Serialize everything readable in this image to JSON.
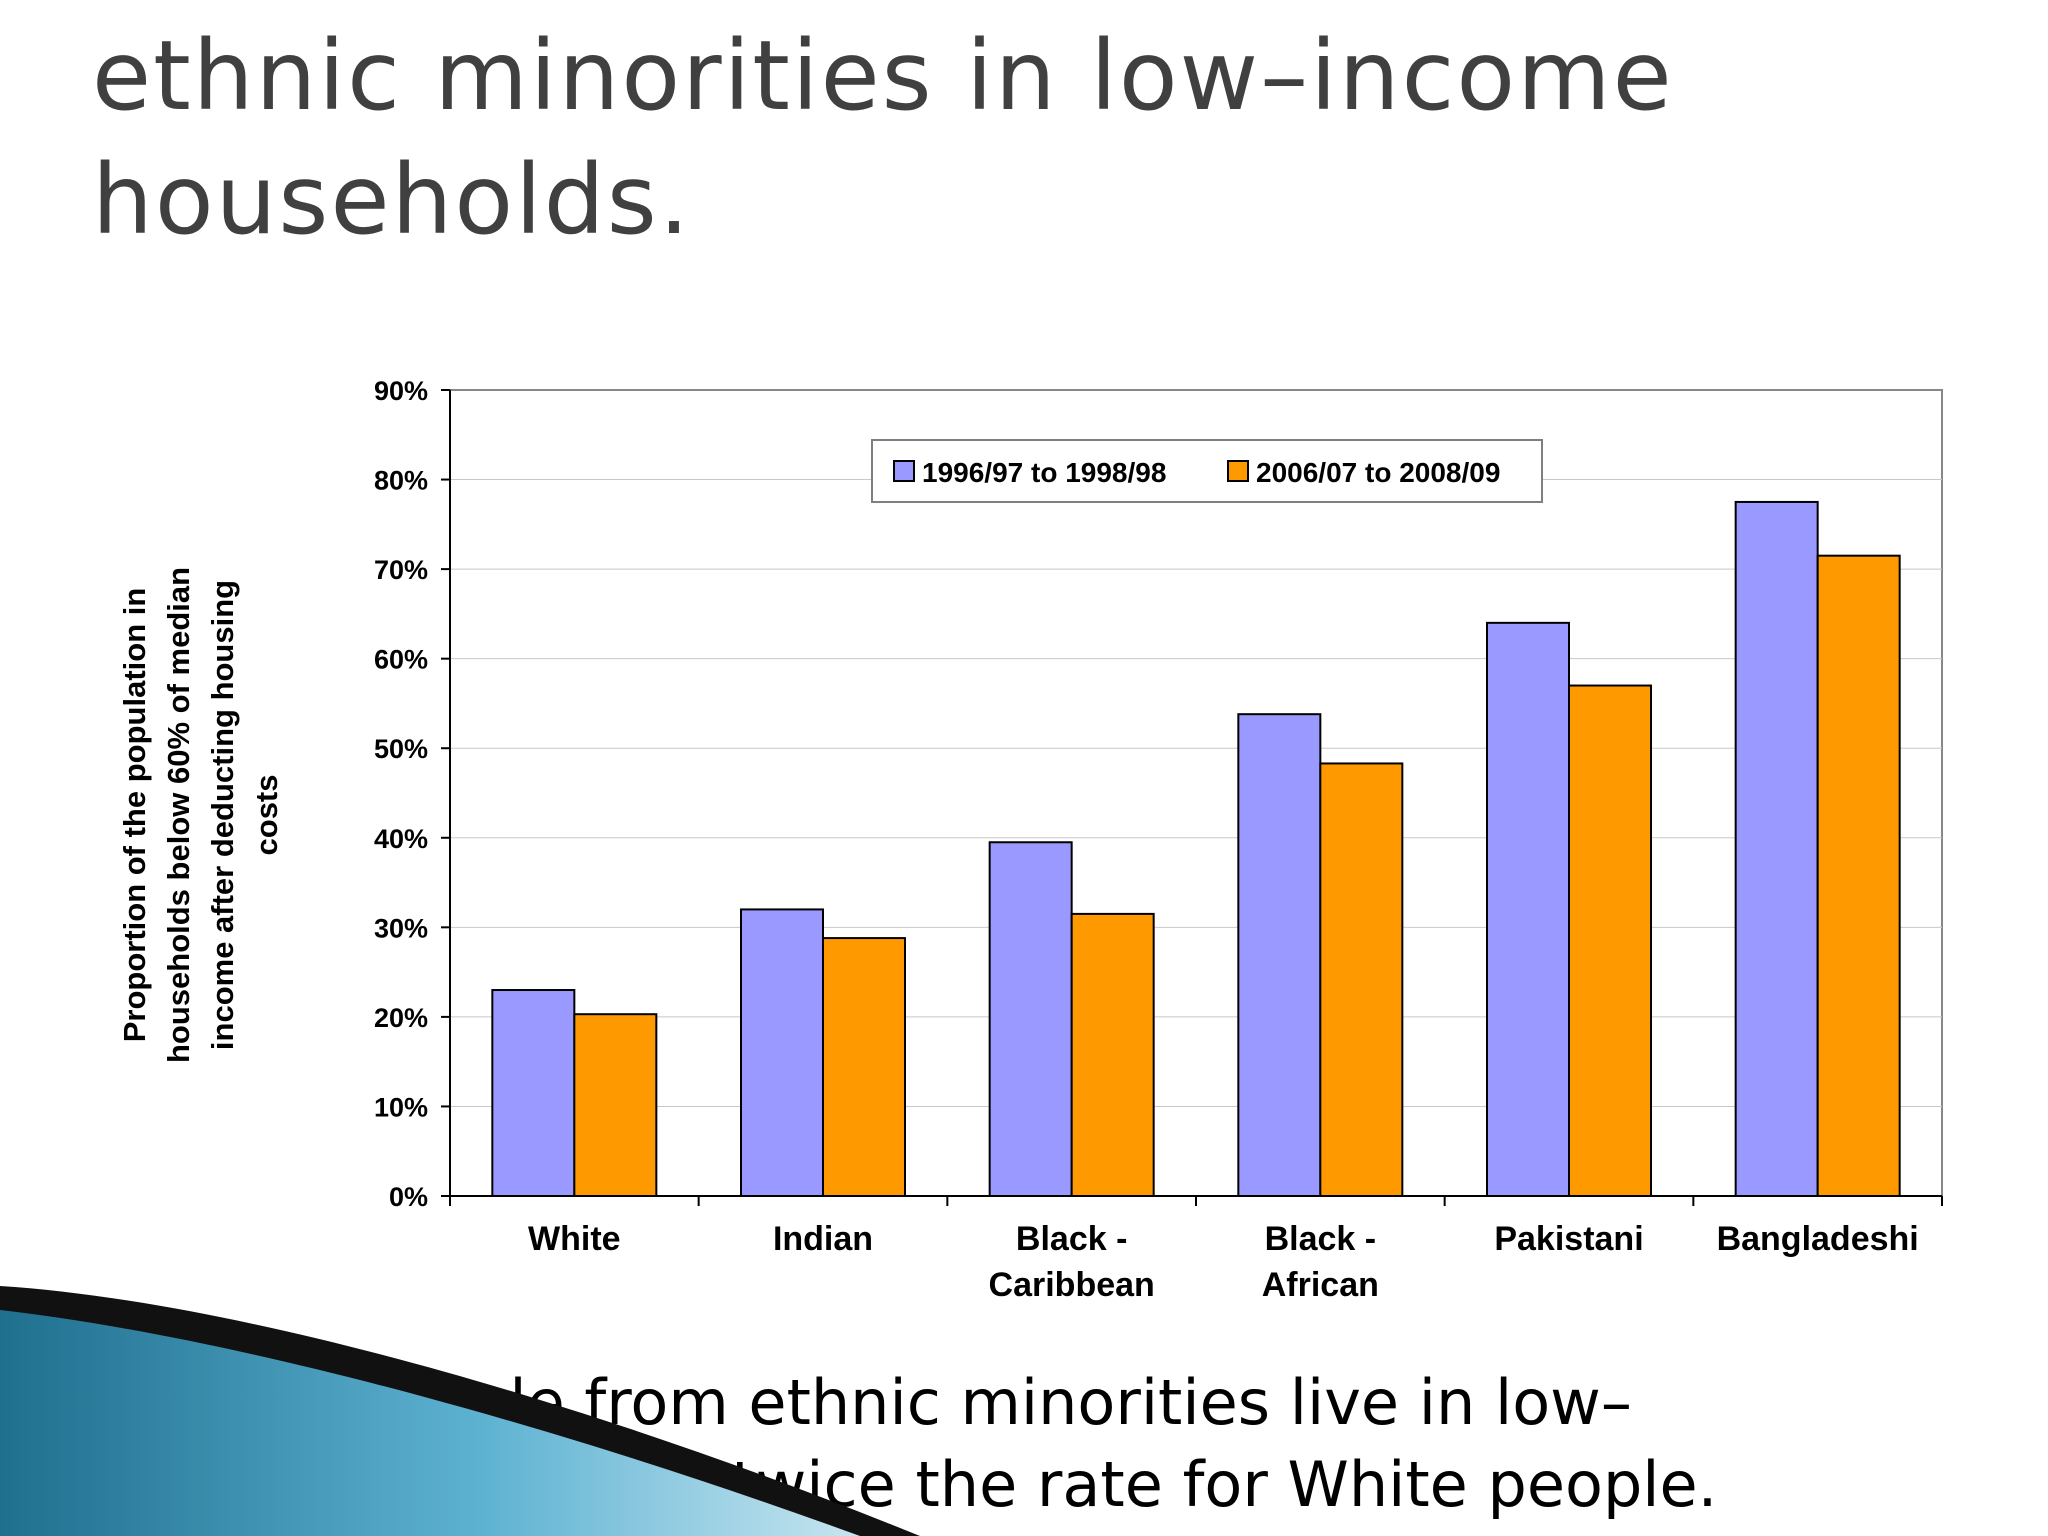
{
  "slide": {
    "title_lines": [
      "ethnic minorities in low–income",
      "households."
    ],
    "caption_lines": [
      "2/5th of people from ethnic minorities live in low–",
      "income households, twice the rate for White people."
    ]
  },
  "chart_data": {
    "type": "bar",
    "title": "",
    "xlabel": "",
    "ylabel_lines": [
      "Proportion of the population in",
      "households below 60% of median",
      "income after deducting housing",
      "costs"
    ],
    "ylim": [
      0,
      90
    ],
    "yticks": [
      0,
      10,
      20,
      30,
      40,
      50,
      60,
      70,
      80,
      90
    ],
    "ytick_labels": [
      "0%",
      "10%",
      "20%",
      "30%",
      "40%",
      "50%",
      "60%",
      "70%",
      "80%",
      "90%"
    ],
    "grid": true,
    "legend_position": "top-center",
    "categories": [
      [
        "White"
      ],
      [
        "Indian"
      ],
      [
        "Black -",
        "Caribbean"
      ],
      [
        "Black -",
        "African"
      ],
      [
        "Pakistani"
      ],
      [
        "Bangladeshi"
      ]
    ],
    "series": [
      {
        "name": "1996/97 to 1998/98",
        "color": "#9999ff",
        "values": [
          23,
          32,
          39.5,
          53.8,
          64,
          77.5
        ]
      },
      {
        "name": "2006/07 to 2008/09",
        "color": "#ff9900",
        "values": [
          20.3,
          28.8,
          31.5,
          48.3,
          57,
          71.5
        ]
      }
    ]
  }
}
